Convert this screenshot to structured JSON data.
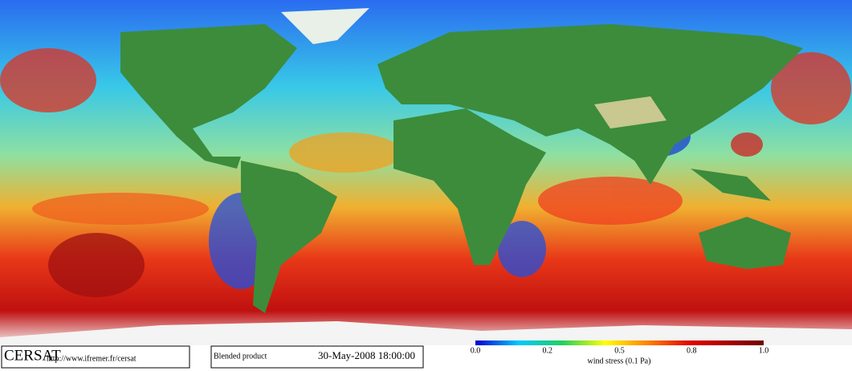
{
  "logo": "CERSAT",
  "url": "http://www.ifremer.fr/cersat",
  "product": "Blended product",
  "timestamp": "30-May-2008 18:00:00",
  "colorbar": {
    "ticks": [
      "0.0",
      "0.2",
      "0.5",
      "0.8",
      "1.0"
    ],
    "label": "wind stress (0.1 Pa)"
  }
}
